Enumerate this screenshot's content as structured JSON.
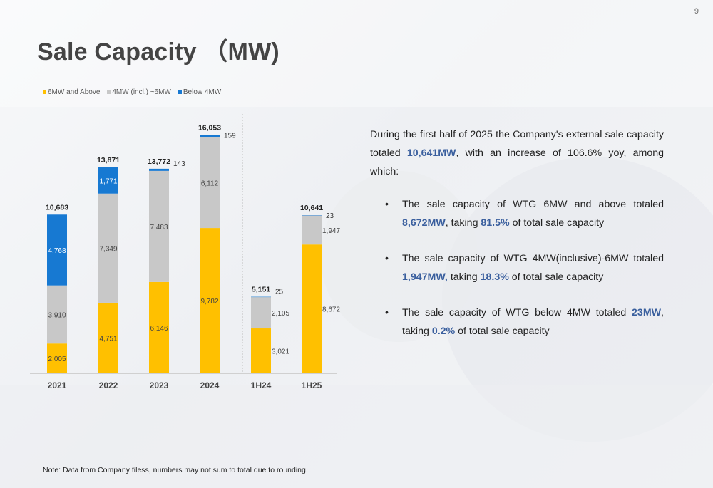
{
  "page_number": "9",
  "title": "Sale Capacity （MW)",
  "colors": {
    "s6": "#ffc000",
    "s4": "#c8c8c8",
    "below": "#1779d2"
  },
  "chart_data": {
    "type": "bar",
    "stacked": true,
    "categories": [
      "2021",
      "2022",
      "2023",
      "2024",
      "1H24",
      "1H25"
    ],
    "series": [
      {
        "name": "6MW and Above",
        "values": [
          2005,
          4751,
          6146,
          9782,
          3021,
          8672
        ],
        "labels": [
          "2,005",
          "4,751",
          "6,146",
          "9,782",
          "3,021",
          "8,672"
        ]
      },
      {
        "name": "4MW (incl.) ~6MW",
        "values": [
          3910,
          7349,
          7483,
          6112,
          2105,
          1947
        ],
        "labels": [
          "3,910",
          "7,349",
          "7,483",
          "6,112",
          "2,105",
          "1,947"
        ]
      },
      {
        "name": "Below 4MW",
        "values": [
          4768,
          1771,
          143,
          159,
          25,
          23
        ],
        "labels": [
          "4,768",
          "1,771",
          "143",
          "159",
          "25",
          "23"
        ]
      }
    ],
    "totals": [
      10683,
      13871,
      13772,
      16053,
      5151,
      10641
    ],
    "total_labels": [
      "10,683",
      "13,871",
      "13,772",
      "16,053",
      "5,151",
      "10,641"
    ],
    "ylim": [
      0,
      16500
    ],
    "grid": false,
    "legend_position": "top-left",
    "xlabel": "",
    "ylabel": ""
  },
  "description": {
    "intro_prefix": "During the first half of 2025 the Company's external sale capacity totaled ",
    "intro_value": "10,641MW",
    "intro_suffix": ", with an increase of 106.6% yoy, among which:",
    "bullet1_prefix": "The sale capacity of WTG 6MW and above totaled ",
    "bullet1_value": "8,672MW",
    "bullet1_mid": ", taking ",
    "bullet1_pct": "81.5%",
    "bullet1_suffix": " of total sale capacity",
    "bullet2_prefix": "The sale capacity of WTG 4MW(inclusive)-6MW totaled ",
    "bullet2_value": "1,947MW,",
    "bullet2_mid": " taking ",
    "bullet2_pct": "18.3%",
    "bullet2_suffix": " of total sale capacity",
    "bullet3_prefix": "The sale capacity of WTG below 4MW totaled ",
    "bullet3_value": "23MW",
    "bullet3_mid": ", taking ",
    "bullet3_pct": "0.2%",
    "bullet3_suffix": " of total sale capacity"
  },
  "note": "Note: Data from Company filess, numbers may not sum to total due to rounding."
}
